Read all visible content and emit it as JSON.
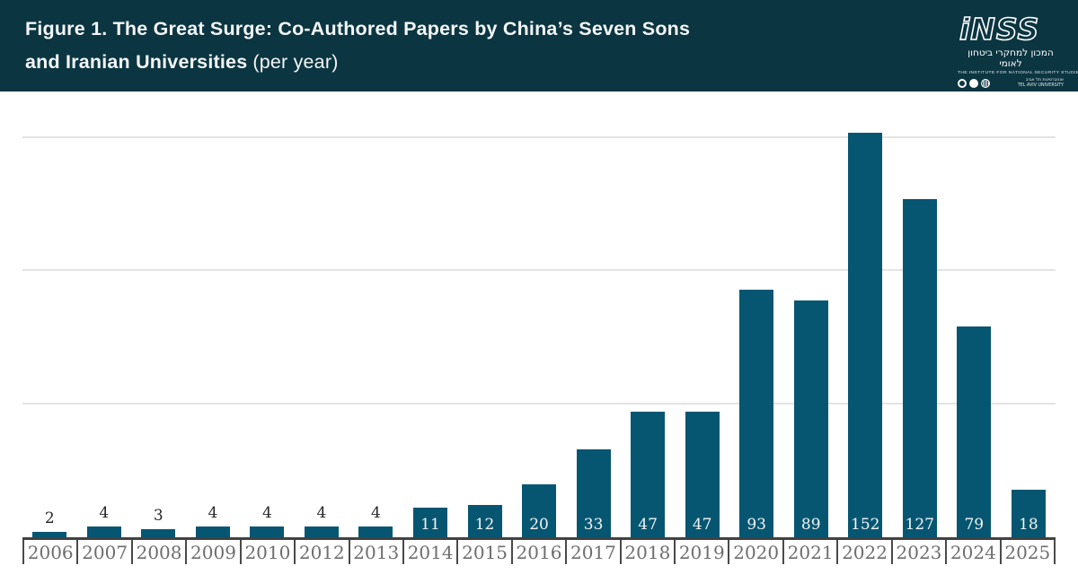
{
  "header": {
    "title_line1": "Figure 1. The Great Surge: Co-Authored Papers by China’s Seven Sons",
    "title_line2_bold": "and Iranian Universities",
    "title_line2_paren": "(per year)"
  },
  "logo": {
    "wordmark": "iNSS",
    "hebrew_name": "המכון למחקרי ביטחון לאומי",
    "english_name": "THE INSTITUTE FOR NATIONAL SECURITY STUDIES",
    "tau_hebrew": "אוניברסיטת תל אביב",
    "tau_english": "TEL AVIV UNIVERSITY"
  },
  "colors": {
    "header_bg": "#0b3541",
    "bar": "#065672",
    "gridline": "#e3e3e3",
    "axis_line": "#414141",
    "tick_label": "#6e6e6e",
    "value_label_outside": "#262626",
    "value_label_inside": "#f2f4f4"
  },
  "chart_data": {
    "type": "bar",
    "title": "Figure 1. The Great Surge: Co-Authored Papers by China’s Seven Sons and Iranian Universities (per year)",
    "categories": [
      "2006",
      "2007",
      "2008",
      "2009",
      "2010",
      "2012",
      "2013",
      "2014",
      "2015",
      "2016",
      "2017",
      "2018",
      "2019",
      "2020",
      "2021",
      "2022",
      "2023",
      "2024",
      "2025"
    ],
    "values": [
      2,
      4,
      3,
      4,
      4,
      4,
      4,
      11,
      12,
      20,
      33,
      47,
      47,
      93,
      89,
      152,
      127,
      79,
      18
    ],
    "xlabel": "",
    "ylabel": "",
    "ylim": [
      0,
      164
    ],
    "gridlines": [
      50,
      100,
      150
    ],
    "grid": true,
    "legend": false,
    "bar_color": "#065672",
    "value_labels_shown": true,
    "value_label_inside_min": 11
  }
}
